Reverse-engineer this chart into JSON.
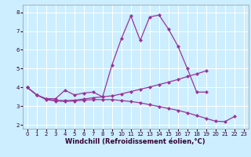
{
  "xlabel": "Windchill (Refroidissement éolien,°C)",
  "background_color": "#cceeff",
  "grid_color": "#ffffff",
  "line_color": "#993399",
  "ylim": [
    1.8,
    8.4
  ],
  "xlim": [
    -0.5,
    23.5
  ],
  "yticks": [
    2,
    3,
    4,
    5,
    6,
    7,
    8
  ],
  "xticks": [
    0,
    1,
    2,
    3,
    4,
    5,
    6,
    7,
    8,
    9,
    10,
    11,
    12,
    13,
    14,
    15,
    16,
    17,
    18,
    19,
    20,
    21,
    22,
    23
  ],
  "line1_x": [
    0,
    1,
    2,
    3,
    4,
    5,
    6,
    7,
    8,
    9,
    10,
    11,
    12,
    13,
    14,
    15,
    16,
    17,
    18,
    19
  ],
  "line1_y": [
    4.0,
    3.6,
    3.4,
    3.4,
    3.85,
    3.6,
    3.7,
    3.75,
    3.5,
    5.2,
    6.6,
    7.8,
    6.5,
    7.75,
    7.85,
    7.1,
    6.2,
    5.0,
    3.75,
    3.75
  ],
  "line2_x": [
    0,
    1,
    2,
    3,
    4,
    5,
    6,
    7,
    8,
    9,
    10,
    11,
    12,
    13,
    14,
    15,
    16,
    17,
    18,
    19
  ],
  "line2_y": [
    4.0,
    3.6,
    3.38,
    3.32,
    3.3,
    3.32,
    3.38,
    3.45,
    3.5,
    3.55,
    3.65,
    3.78,
    3.9,
    4.02,
    4.15,
    4.28,
    4.42,
    4.58,
    4.72,
    4.88
  ],
  "line3_x": [
    0,
    1,
    2,
    3,
    4,
    5,
    6,
    7,
    8,
    9,
    10,
    11,
    12,
    13,
    14,
    15,
    16,
    17,
    18,
    19,
    20,
    21,
    22
  ],
  "line3_y": [
    4.0,
    3.6,
    3.35,
    3.28,
    3.25,
    3.28,
    3.32,
    3.35,
    3.35,
    3.35,
    3.3,
    3.25,
    3.18,
    3.08,
    2.98,
    2.88,
    2.78,
    2.65,
    2.5,
    2.35,
    2.2,
    2.18,
    2.45
  ],
  "markersize": 2.5,
  "linewidth": 0.9,
  "tick_fontsize": 5,
  "xlabel_fontsize": 6
}
